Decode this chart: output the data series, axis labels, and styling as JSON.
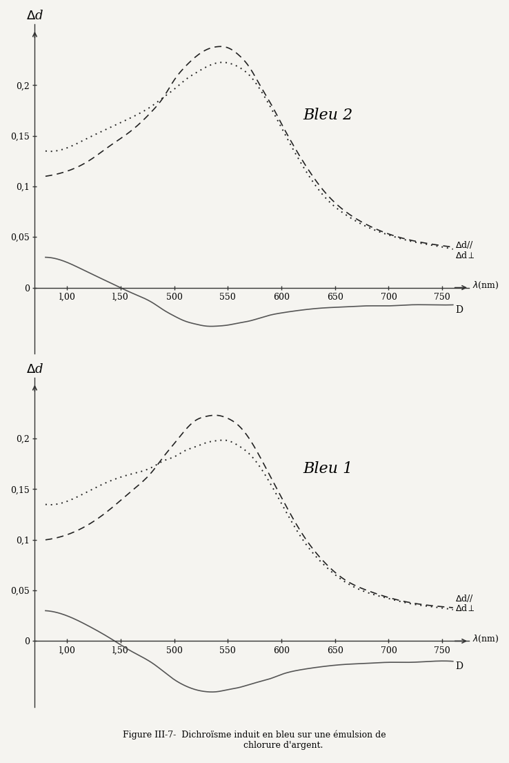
{
  "title": "Figure III-7-  Dichroïsme induit en bleu sur une émulsion de\n                     chlorure d'argent.",
  "background_color": "#f5f4f0",
  "bleu2": {
    "label": "Bleu 2",
    "lambda": [
      380,
      400,
      420,
      440,
      460,
      480,
      490,
      500,
      510,
      520,
      530,
      540,
      550,
      560,
      570,
      580,
      590,
      600,
      620,
      640,
      660,
      680,
      700,
      720,
      740,
      760
    ],
    "dd_parallel": [
      0.11,
      0.115,
      0.125,
      0.14,
      0.155,
      0.175,
      0.188,
      0.205,
      0.218,
      0.228,
      0.235,
      0.238,
      0.237,
      0.23,
      0.218,
      0.2,
      0.182,
      0.162,
      0.125,
      0.095,
      0.075,
      0.062,
      0.053,
      0.047,
      0.043,
      0.04
    ],
    "dd_perp": [
      0.135,
      0.138,
      0.148,
      0.158,
      0.168,
      0.18,
      0.188,
      0.196,
      0.205,
      0.212,
      0.218,
      0.222,
      0.222,
      0.218,
      0.21,
      0.196,
      0.178,
      0.158,
      0.12,
      0.09,
      0.072,
      0.06,
      0.052,
      0.046,
      0.042,
      0.038
    ],
    "D": [
      0.03,
      0.025,
      0.015,
      0.005,
      -0.005,
      -0.015,
      -0.022,
      -0.028,
      -0.033,
      -0.036,
      -0.038,
      -0.038,
      -0.037,
      -0.035,
      -0.033,
      -0.03,
      -0.027,
      -0.025,
      -0.022,
      -0.02,
      -0.019,
      -0.018,
      -0.018,
      -0.017,
      -0.017,
      -0.017
    ]
  },
  "bleu1": {
    "label": "Bleu 1",
    "lambda": [
      380,
      400,
      420,
      440,
      460,
      480,
      490,
      500,
      510,
      520,
      530,
      540,
      550,
      560,
      570,
      580,
      590,
      600,
      620,
      640,
      660,
      680,
      700,
      720,
      740,
      760
    ],
    "dd_parallel": [
      0.1,
      0.105,
      0.115,
      0.13,
      0.148,
      0.168,
      0.182,
      0.195,
      0.208,
      0.218,
      0.222,
      0.223,
      0.22,
      0.213,
      0.2,
      0.182,
      0.162,
      0.142,
      0.105,
      0.078,
      0.06,
      0.05,
      0.043,
      0.038,
      0.035,
      0.033
    ],
    "dd_perp": [
      0.135,
      0.138,
      0.148,
      0.158,
      0.165,
      0.172,
      0.178,
      0.182,
      0.188,
      0.192,
      0.196,
      0.198,
      0.198,
      0.193,
      0.185,
      0.172,
      0.155,
      0.136,
      0.1,
      0.075,
      0.058,
      0.048,
      0.042,
      0.037,
      0.034,
      0.031
    ],
    "D": [
      0.03,
      0.025,
      0.015,
      0.003,
      -0.01,
      -0.022,
      -0.03,
      -0.038,
      -0.044,
      -0.048,
      -0.05,
      -0.05,
      -0.048,
      -0.046,
      -0.043,
      -0.04,
      -0.037,
      -0.033,
      -0.028,
      -0.025,
      -0.023,
      -0.022,
      -0.021,
      -0.021,
      -0.02,
      -0.02
    ]
  },
  "ylim": [
    -0.065,
    0.26
  ],
  "xlim": [
    370,
    775
  ],
  "xticks": [
    400,
    450,
    500,
    550,
    600,
    650,
    700,
    750
  ],
  "xtick_labels": [
    "l,00",
    "l,50",
    "500",
    "550",
    "600",
    "650",
    "700",
    "750"
  ],
  "yticks": [
    0.0,
    0.05,
    0.1,
    0.15,
    0.2
  ],
  "ytick_labels": [
    "0",
    "0,05",
    "0,1",
    "0,15",
    "0,2"
  ],
  "color_parallel": "#222222",
  "color_perp": "#222222",
  "color_D": "#555555",
  "linestyle_parallel": "--",
  "linestyle_perp": ":",
  "linestyle_D": "-"
}
